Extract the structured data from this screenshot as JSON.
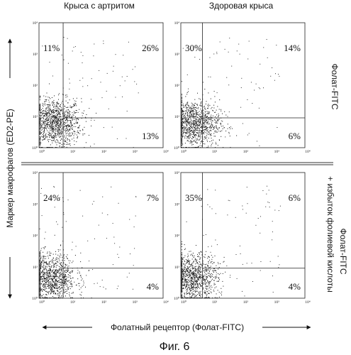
{
  "figure_label": "Фиг. 6",
  "columns": [
    "Крыса с артритом",
    "Здоровая крыса"
  ],
  "row_labels": [
    "Фолат-FITC",
    "Фолат-FITC",
    "+ избыток фолиевой кислоты"
  ],
  "y_axis_label": "Маркер макрофагов (ED2-PE)",
  "x_axis_label": "Фолатный рецептор (Фолат-FITC)",
  "chart_data": [
    {
      "type": "scatter",
      "title": "Крыса с артритом",
      "row": "Фолат-FITC",
      "xscale": "log",
      "yscale": "log",
      "xlim": [
        1,
        10000
      ],
      "ylim": [
        1,
        10000
      ],
      "x_ticks": [
        "10⁰",
        "10¹",
        "10²",
        "10³",
        "10⁴"
      ],
      "y_ticks": [
        "10⁰",
        "10¹",
        "10²",
        "10³",
        "10⁴"
      ],
      "gates": {
        "x": 6,
        "y": 9
      },
      "quadrants": {
        "upper_left": "11%",
        "upper_right": "26%",
        "lower_right": "13%"
      },
      "cloud": {
        "cx": 3.2,
        "cy": 6.5,
        "n": 1100
      }
    },
    {
      "type": "scatter",
      "title": "Здоровая крыса",
      "row": "Фолат-FITC",
      "xscale": "log",
      "yscale": "log",
      "xlim": [
        1,
        10000
      ],
      "ylim": [
        1,
        10000
      ],
      "x_ticks": [
        "10⁰",
        "10¹",
        "10²",
        "10³",
        "10⁴"
      ],
      "y_ticks": [
        "10⁰",
        "10¹",
        "10²",
        "10³",
        "10⁴"
      ],
      "gates": {
        "x": 5,
        "y": 9
      },
      "quadrants": {
        "upper_left": "30%",
        "upper_right": "14%",
        "lower_right": "6%"
      },
      "cloud": {
        "cx": 2.5,
        "cy": 6,
        "n": 1100
      }
    },
    {
      "type": "scatter",
      "title": "Крыса с артритом",
      "row": "Фолат-FITC + избыток фолиевой кислоты",
      "xscale": "log",
      "yscale": "log",
      "xlim": [
        1,
        10000
      ],
      "ylim": [
        1,
        10000
      ],
      "x_ticks": [
        "10⁰",
        "10¹",
        "10²",
        "10³",
        "10⁴"
      ],
      "y_ticks": [
        "10⁰",
        "10¹",
        "10²",
        "10³",
        "10⁴"
      ],
      "gates": {
        "x": 6,
        "y": 9
      },
      "quadrants": {
        "upper_left": "24%",
        "upper_right": "7%",
        "lower_right": "4%"
      },
      "cloud": {
        "cx": 2.2,
        "cy": 4.5,
        "n": 1100
      }
    },
    {
      "type": "scatter",
      "title": "Здоровая крыса",
      "row": "Фолат-FITC + избыток фолиевой кислоты",
      "xscale": "log",
      "yscale": "log",
      "xlim": [
        1,
        10000
      ],
      "ylim": [
        1,
        10000
      ],
      "x_ticks": [
        "10⁰",
        "10¹",
        "10²",
        "10³",
        "10⁴"
      ],
      "y_ticks": [
        "10⁰",
        "10¹",
        "10²",
        "10³",
        "10⁴"
      ],
      "gates": {
        "x": 5,
        "y": 9
      },
      "quadrants": {
        "upper_left": "35%",
        "upper_right": "6%",
        "lower_right": "4%"
      },
      "cloud": {
        "cx": 2.2,
        "cy": 4.5,
        "n": 1100
      }
    }
  ]
}
